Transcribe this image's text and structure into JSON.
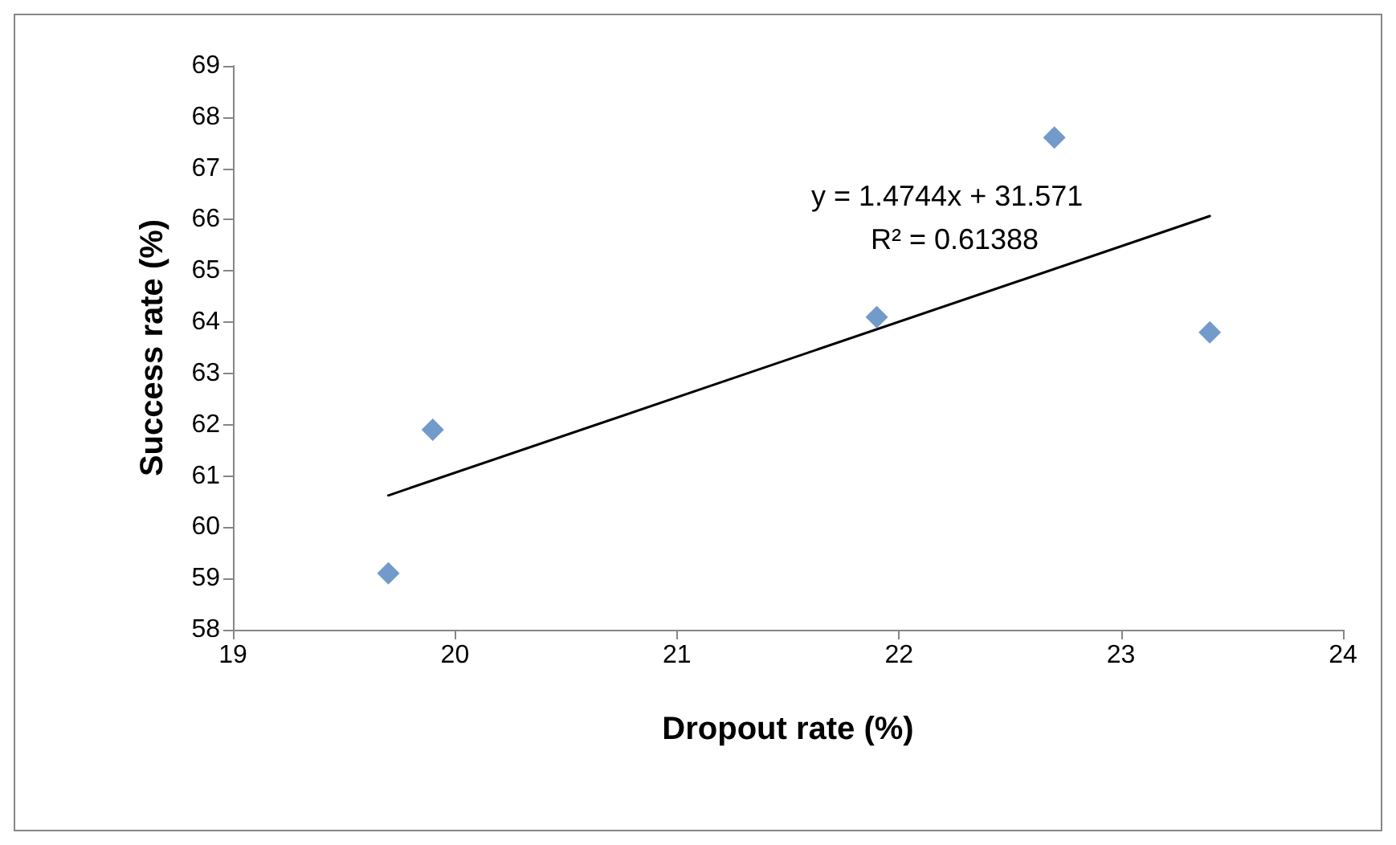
{
  "chart_data": {
    "type": "scatter",
    "xlabel": "Dropout rate (%)",
    "ylabel": "Success rate (%)",
    "x": [
      19.7,
      19.9,
      21.9,
      22.7,
      23.4
    ],
    "series": [
      {
        "color": "#4f81bd",
        "values": [
          59.1,
          61.9,
          64.1,
          67.6,
          63.8
        ],
        "marker": "diamond"
      },
      {
        "type": "line",
        "color": "#000000",
        "x": [
          19.7,
          23.4
        ],
        "values": [
          60.62,
          66.07
        ],
        "marker": "none",
        "line_style": "solid"
      }
    ],
    "annotations": [
      "y = 1.4744x + 31.571",
      "R² = 0.61388"
    ],
    "xlim": [
      19,
      24
    ],
    "xticks": [
      19,
      20,
      21,
      22,
      23,
      24
    ],
    "ylim": [
      58,
      69
    ],
    "yticks": [
      58,
      59,
      60,
      61,
      62,
      63,
      64,
      65,
      66,
      67,
      68,
      69
    ],
    "grid": false
  }
}
